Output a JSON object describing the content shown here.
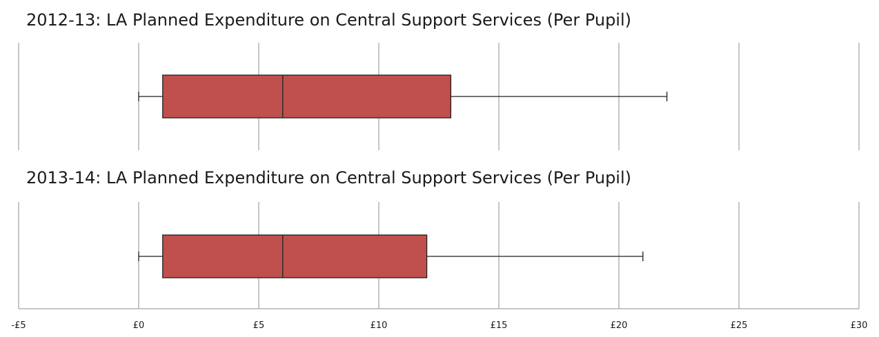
{
  "chart_data": {
    "type": "boxplot",
    "orientation": "horizontal",
    "xlim": [
      -5,
      30
    ],
    "x_ticks": [
      -5,
      0,
      5,
      10,
      15,
      20,
      25,
      30
    ],
    "x_tick_labels": [
      "-£5",
      "£0",
      "£5",
      "£10",
      "£15",
      "£20",
      "£25",
      "£30"
    ],
    "box_color": "#c0504d",
    "grid": true,
    "panels": [
      {
        "title": "2012-13: LA Planned Expenditure on Central Support Services (Per Pupil)",
        "min": 0,
        "q1": 1,
        "median": 6,
        "q3": 13,
        "max": 22
      },
      {
        "title": "2013-14: LA Planned Expenditure on Central Support Services (Per Pupil)",
        "min": 0,
        "q1": 1,
        "median": 6,
        "q3": 12,
        "max": 21
      }
    ]
  }
}
